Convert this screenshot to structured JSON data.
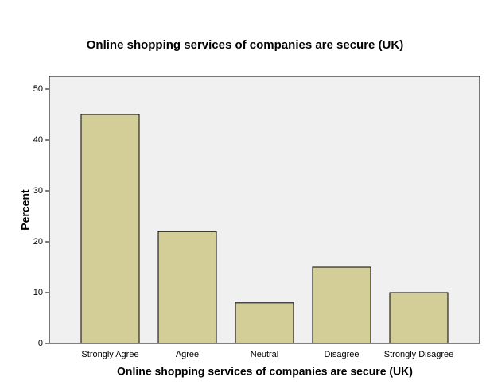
{
  "chart_data": {
    "type": "bar",
    "title": "Online shopping services of companies are secure (UK)",
    "x_label": "Online shopping services of companies are secure (UK)",
    "y_label": "Percent",
    "categories": [
      "Strongly Agree",
      "Agree",
      "Neutral",
      "Disagree",
      "Strongly Disagree"
    ],
    "values": [
      45,
      22,
      8,
      15,
      10
    ],
    "color": "#d3ce97",
    "ylim": [
      0,
      52.5
    ],
    "yticks": [
      0,
      10,
      20,
      30,
      40,
      50
    ],
    "grid": false
  }
}
